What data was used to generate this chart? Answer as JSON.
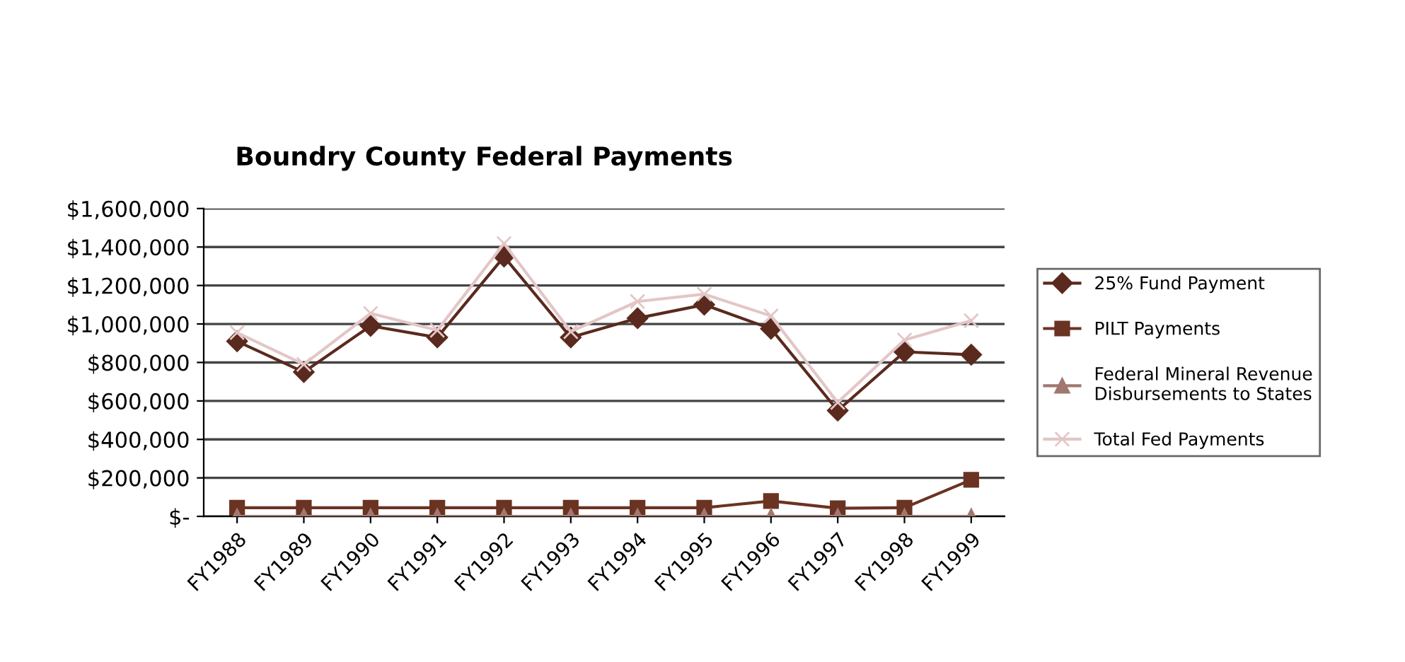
{
  "chart_data": {
    "type": "line",
    "title": "Boundry County Federal Payments",
    "categories": [
      "FY1988",
      "FY1989",
      "FY1990",
      "FY1991",
      "FY1992",
      "FY1993",
      "FY1994",
      "FY1995",
      "FY1996",
      "FY1997",
      "FY1998",
      "FY1999"
    ],
    "series": [
      {
        "name": "25% Fund Payment",
        "color": "#5a2a1e",
        "marker": "diamond",
        "values": [
          910000,
          750000,
          990000,
          930000,
          1350000,
          930000,
          1030000,
          1100000,
          975000,
          550000,
          855000,
          840000
        ]
      },
      {
        "name": "PILT Payments",
        "color": "#6b3322",
        "marker": "square",
        "values": [
          45000,
          45000,
          45000,
          45000,
          45000,
          45000,
          45000,
          45000,
          80000,
          42000,
          45000,
          190000
        ]
      },
      {
        "name": "Federal Mineral Revenue\nDisbursements to States",
        "color": "#a07870",
        "marker": "triangle",
        "values": [
          0,
          0,
          0,
          0,
          0,
          0,
          0,
          0,
          0,
          0,
          0,
          0
        ]
      },
      {
        "name": "Total Fed Payments",
        "color": "#e3c6c6",
        "marker": "cross",
        "values": [
          955000,
          790000,
          1055000,
          967000,
          1418000,
          960000,
          1117000,
          1155000,
          1042000,
          592000,
          917000,
          1017000
        ]
      }
    ],
    "ylim": [
      0,
      1600000
    ],
    "yticks": [
      {
        "value": 0,
        "label": "$-"
      },
      {
        "value": 200000,
        "label": "$200,000"
      },
      {
        "value": 400000,
        "label": "$400,000"
      },
      {
        "value": 600000,
        "label": "$600,000"
      },
      {
        "value": 800000,
        "label": "$800,000"
      },
      {
        "value": 1000000,
        "label": "$1,000,000"
      },
      {
        "value": 1200000,
        "label": "$1,200,000"
      },
      {
        "value": 1400000,
        "label": "$1,400,000"
      },
      {
        "value": 1600000,
        "label": "$1,600,000"
      }
    ],
    "grid": "y",
    "legend": "right"
  }
}
